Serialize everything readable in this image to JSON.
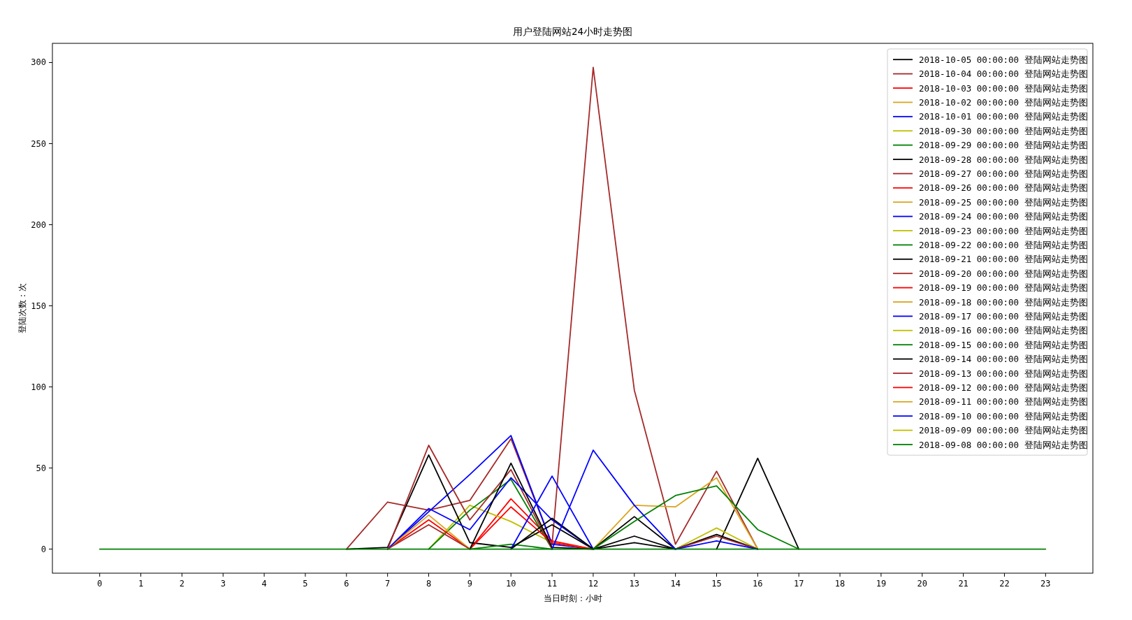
{
  "chart_data": {
    "type": "line",
    "title": "用户登陆网站24小时走势图",
    "xlabel": "当日时刻：小时",
    "ylabel": "登陆次数：次",
    "x": [
      0,
      1,
      2,
      3,
      4,
      5,
      6,
      7,
      8,
      9,
      10,
      11,
      12,
      13,
      14,
      15,
      16,
      17,
      18,
      19,
      20,
      21,
      22,
      23
    ],
    "xlim": [
      -1.15,
      24.15
    ],
    "xticks": [
      0,
      1,
      2,
      3,
      4,
      5,
      6,
      7,
      8,
      9,
      10,
      11,
      12,
      13,
      14,
      15,
      16,
      17,
      18,
      19,
      20,
      21,
      22,
      23
    ],
    "ylim": [
      -14.85,
      311.85
    ],
    "yticks": [
      0,
      50,
      100,
      150,
      200,
      250,
      300
    ],
    "legend": "top right",
    "series": [
      {
        "name": "2018-10-05 00:00:00 登陆网站走势图",
        "color": "#000000",
        "values": [
          null,
          null,
          null,
          null,
          null,
          null,
          null,
          null,
          null,
          null,
          null,
          null,
          null,
          null,
          null,
          0,
          56,
          0,
          null,
          null,
          null,
          null,
          null,
          null
        ]
      },
      {
        "name": "2018-10-04 00:00:00 登陆网站走势图",
        "color": "#a52a2a",
        "values": [
          null,
          null,
          null,
          null,
          null,
          null,
          0,
          29,
          24,
          30,
          68,
          3,
          297,
          98,
          3,
          48,
          0,
          null,
          null,
          null,
          null,
          null,
          null,
          null
        ]
      },
      {
        "name": "2018-10-03 00:00:00 登陆网站走势图",
        "color": "#ff0000",
        "values": [
          null,
          null,
          null,
          null,
          null,
          null,
          null,
          null,
          null,
          0,
          31,
          5,
          0,
          null,
          null,
          null,
          null,
          null,
          null,
          null,
          null,
          null,
          null,
          null
        ]
      },
      {
        "name": "2018-10-02 00:00:00 登陆网站走势图",
        "color": "#daa520",
        "values": [
          null,
          null,
          null,
          null,
          null,
          null,
          null,
          null,
          null,
          null,
          null,
          null,
          0,
          27,
          26,
          44,
          0,
          null,
          null,
          null,
          null,
          null,
          null,
          null
        ]
      },
      {
        "name": "2018-10-01 00:00:00 登陆网站走势图",
        "color": "#0000ff",
        "values": [
          null,
          null,
          null,
          null,
          null,
          null,
          null,
          0,
          23,
          46,
          70,
          3,
          0,
          null,
          null,
          null,
          null,
          null,
          null,
          null,
          null,
          null,
          null,
          null
        ]
      },
      {
        "name": "2018-09-30 00:00:00 登陆网站走势图",
        "color": "#bfbf00",
        "values": [
          null,
          null,
          null,
          null,
          null,
          null,
          null,
          null,
          0,
          27,
          17,
          4,
          0,
          null,
          null,
          null,
          null,
          null,
          null,
          null,
          null,
          null,
          null,
          null
        ]
      },
      {
        "name": "2018-09-29 00:00:00 登陆网站走势图",
        "color": "#008000",
        "values": [
          null,
          null,
          null,
          null,
          null,
          null,
          null,
          null,
          0,
          24,
          43,
          0,
          null,
          null,
          null,
          null,
          null,
          null,
          null,
          null,
          null,
          null,
          null,
          null
        ]
      },
      {
        "name": "2018-09-28 00:00:00 登陆网站走势图",
        "color": "#000000",
        "values": [
          null,
          null,
          null,
          null,
          null,
          null,
          0,
          1,
          58,
          4,
          1,
          15,
          0,
          8,
          0,
          null,
          null,
          null,
          null,
          null,
          null,
          null,
          null,
          null
        ]
      },
      {
        "name": "2018-09-27 00:00:00 登陆网站走势图",
        "color": "#a52a2a",
        "values": [
          null,
          null,
          null,
          null,
          null,
          null,
          null,
          0,
          64,
          18,
          49,
          0,
          null,
          null,
          null,
          null,
          null,
          null,
          null,
          null,
          null,
          null,
          null,
          null
        ]
      },
      {
        "name": "2018-09-26 00:00:00 登陆网站走势图",
        "color": "#ff0000",
        "values": [
          null,
          null,
          null,
          null,
          null,
          null,
          null,
          0,
          18,
          0,
          26,
          4,
          0,
          null,
          null,
          null,
          null,
          null,
          null,
          null,
          null,
          null,
          null,
          null
        ]
      },
      {
        "name": "2018-09-25 00:00:00 登陆网站走势图",
        "color": "#daa520",
        "values": [
          null,
          null,
          null,
          null,
          null,
          null,
          null,
          0,
          21,
          0,
          null,
          null,
          null,
          null,
          null,
          null,
          null,
          null,
          null,
          null,
          null,
          null,
          null,
          null
        ]
      },
      {
        "name": "2018-09-24 00:00:00 登陆网站走势图",
        "color": "#0000ff",
        "values": [
          null,
          null,
          null,
          null,
          null,
          null,
          null,
          0,
          25,
          12,
          44,
          18,
          0,
          null,
          null,
          null,
          null,
          null,
          null,
          null,
          null,
          null,
          null,
          null
        ]
      },
      {
        "name": "2018-09-23 00:00:00 登陆网站走势图",
        "color": "#bfbf00",
        "values": [
          null,
          null,
          null,
          null,
          null,
          null,
          null,
          null,
          null,
          null,
          null,
          null,
          null,
          null,
          0,
          13,
          0,
          null,
          null,
          null,
          null,
          null,
          null,
          null
        ]
      },
      {
        "name": "2018-09-22 00:00:00 登陆网站走势图",
        "color": "#008000",
        "values": [
          null,
          null,
          null,
          null,
          null,
          null,
          null,
          null,
          null,
          0,
          3,
          0,
          null,
          null,
          null,
          null,
          null,
          null,
          null,
          null,
          null,
          null,
          null,
          null
        ]
      },
      {
        "name": "2018-09-21 00:00:00 登陆网站走势图",
        "color": "#000000",
        "values": [
          null,
          null,
          null,
          null,
          null,
          null,
          null,
          null,
          null,
          0,
          53,
          1,
          0,
          20,
          0,
          9,
          0,
          null,
          null,
          null,
          null,
          null,
          null,
          null
        ]
      },
      {
        "name": "2018-09-20 00:00:00 登陆网站走势图",
        "color": "#a52a2a",
        "values": [
          null,
          null,
          null,
          null,
          null,
          null,
          null,
          0,
          15,
          0,
          null,
          null,
          null,
          null,
          0,
          8,
          0,
          null,
          null,
          null,
          null,
          null,
          null,
          null
        ]
      },
      {
        "name": "2018-09-19 00:00:00 登陆网站走势图",
        "color": "#ff0000",
        "values": [
          null,
          null,
          null,
          null,
          null,
          null,
          null,
          null,
          null,
          null,
          null,
          null,
          null,
          null,
          null,
          null,
          null,
          null,
          null,
          null,
          null,
          null,
          null,
          null
        ]
      },
      {
        "name": "2018-09-18 00:00:00 登陆网站走势图",
        "color": "#daa520",
        "values": [
          null,
          null,
          null,
          null,
          null,
          null,
          null,
          null,
          null,
          null,
          null,
          null,
          null,
          null,
          null,
          null,
          null,
          null,
          null,
          null,
          null,
          null,
          null,
          null
        ]
      },
      {
        "name": "2018-09-17 00:00:00 登陆网站走势图",
        "color": "#0000ff",
        "values": [
          null,
          null,
          null,
          null,
          null,
          null,
          null,
          null,
          null,
          null,
          0,
          45,
          0,
          null,
          0,
          5,
          0,
          null,
          null,
          null,
          null,
          null,
          null,
          null
        ]
      },
      {
        "name": "2018-09-16 00:00:00 登陆网站走势图",
        "color": "#bfbf00",
        "values": [
          null,
          null,
          null,
          null,
          null,
          null,
          null,
          null,
          null,
          null,
          null,
          null,
          null,
          null,
          null,
          null,
          null,
          null,
          null,
          null,
          null,
          null,
          null,
          null
        ]
      },
      {
        "name": "2018-09-15 00:00:00 登陆网站走势图",
        "color": "#008000",
        "values": [
          null,
          null,
          null,
          null,
          null,
          null,
          null,
          null,
          null,
          null,
          null,
          null,
          0,
          17,
          33,
          39,
          12,
          0,
          null,
          null,
          null,
          null,
          null,
          null
        ]
      },
      {
        "name": "2018-09-14 00:00:00 登陆网站走势图",
        "color": "#000000",
        "values": [
          null,
          null,
          null,
          null,
          null,
          null,
          null,
          null,
          null,
          null,
          0,
          19,
          0,
          4,
          0,
          null,
          null,
          null,
          null,
          null,
          null,
          null,
          null,
          null
        ]
      },
      {
        "name": "2018-09-13 00:00:00 登陆网站走势图",
        "color": "#a52a2a",
        "values": [
          null,
          null,
          null,
          null,
          null,
          null,
          null,
          null,
          null,
          null,
          null,
          null,
          null,
          null,
          null,
          null,
          null,
          null,
          null,
          null,
          null,
          null,
          null,
          null
        ]
      },
      {
        "name": "2018-09-12 00:00:00 登陆网站走势图",
        "color": "#ff0000",
        "values": [
          null,
          null,
          null,
          null,
          null,
          null,
          null,
          null,
          null,
          null,
          null,
          null,
          null,
          null,
          null,
          null,
          null,
          null,
          null,
          null,
          null,
          null,
          null,
          null
        ]
      },
      {
        "name": "2018-09-11 00:00:00 登陆网站走势图",
        "color": "#daa520",
        "values": [
          null,
          null,
          null,
          null,
          null,
          null,
          null,
          null,
          null,
          null,
          null,
          null,
          null,
          null,
          null,
          null,
          null,
          null,
          null,
          null,
          null,
          null,
          null,
          null
        ]
      },
      {
        "name": "2018-09-10 00:00:00 登陆网站走势图",
        "color": "#0000ff",
        "values": [
          null,
          null,
          null,
          null,
          null,
          null,
          null,
          null,
          null,
          null,
          null,
          0,
          61,
          27,
          0,
          null,
          null,
          null,
          null,
          null,
          null,
          null,
          null,
          null
        ]
      },
      {
        "name": "2018-09-09 00:00:00 登陆网站走势图",
        "color": "#bfbf00",
        "values": [
          null,
          null,
          null,
          null,
          null,
          null,
          null,
          null,
          null,
          null,
          null,
          null,
          null,
          null,
          null,
          null,
          null,
          null,
          null,
          null,
          null,
          null,
          null,
          null
        ]
      },
      {
        "name": "2018-09-08 00:00:00 登陆网站走势图",
        "color": "#008000",
        "values": [
          0,
          0,
          0,
          0,
          0,
          0,
          0,
          0,
          0,
          0,
          0,
          0,
          0,
          0,
          0,
          0,
          0,
          0,
          0,
          0,
          0,
          0,
          0,
          0
        ]
      }
    ]
  }
}
